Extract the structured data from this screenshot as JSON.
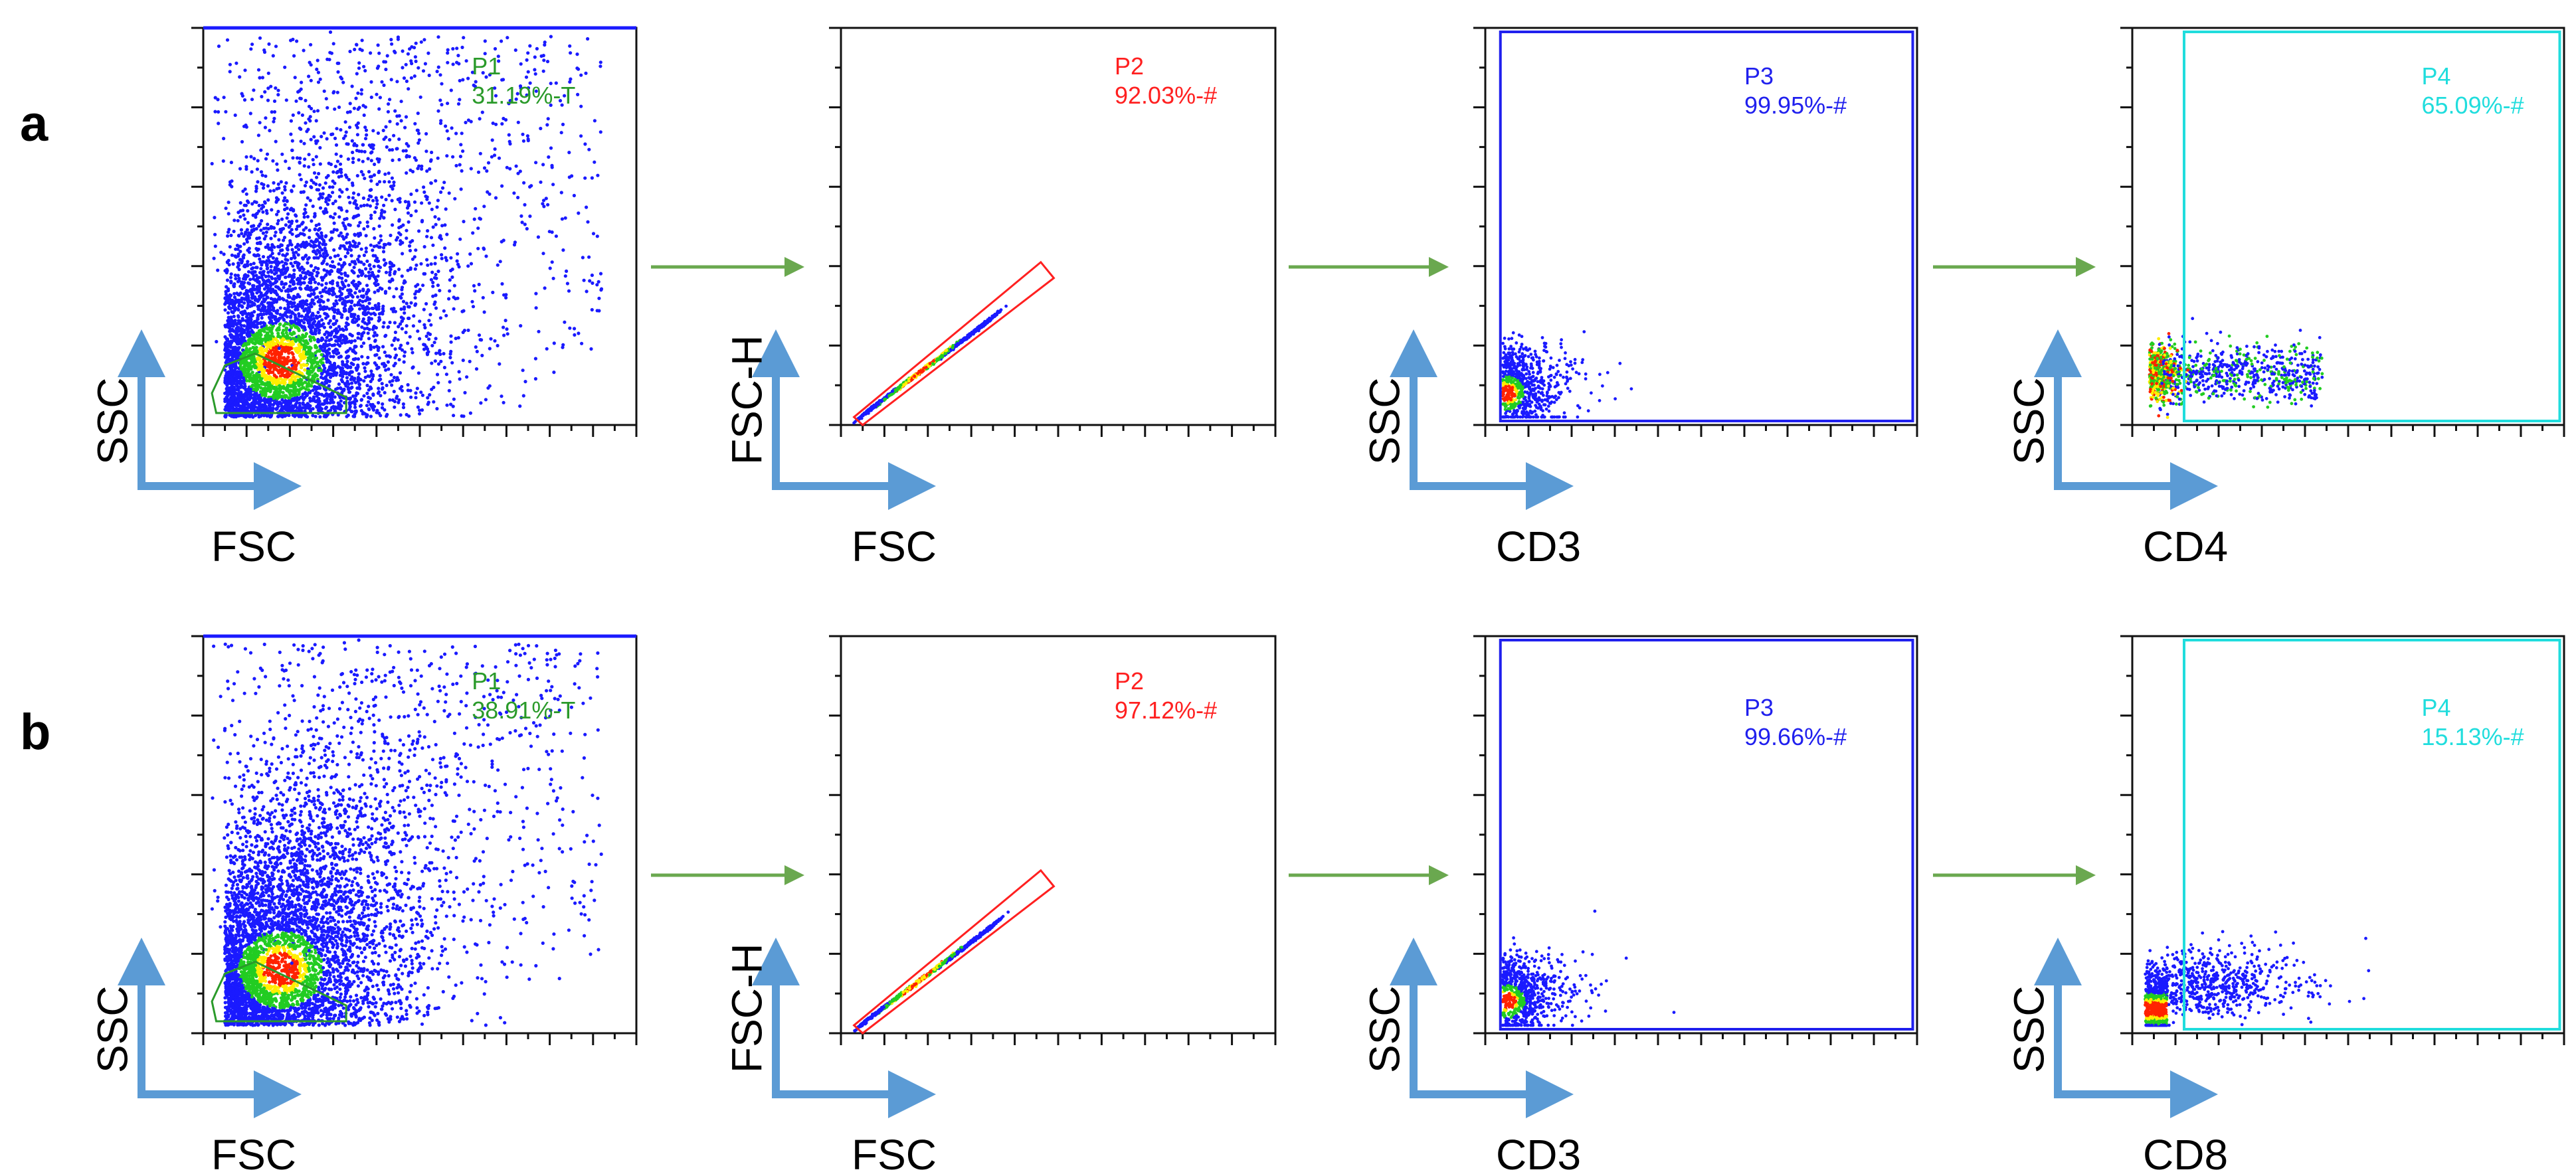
{
  "colors": {
    "event": "#1a1aff",
    "density_mid": "#22cc22",
    "density_high": "#ffee00",
    "density_peak": "#ff2200",
    "gate_p1": "#2a9a2a",
    "gate_p2": "#ff2020",
    "gate_p3": "#2020ee",
    "gate_p4": "#20dddd",
    "flow_arrow": "#6aa84f",
    "axis_arrow": "#5b9bd5"
  },
  "rows": [
    {
      "letter": "a",
      "panels": [
        {
          "xlabel": "FSC",
          "ylabel": "SSC",
          "gate": {
            "name": "P1",
            "value": "31.19%-T"
          }
        },
        {
          "xlabel": "FSC",
          "ylabel": "FSC-H",
          "gate": {
            "name": "P2",
            "value": "92.03%-#"
          }
        },
        {
          "xlabel": "CD3",
          "ylabel": "SSC",
          "gate": {
            "name": "P3",
            "value": "99.95%-#"
          }
        },
        {
          "xlabel": "CD4",
          "ylabel": "SSC",
          "gate": {
            "name": "P4",
            "value": "65.09%-#"
          }
        }
      ]
    },
    {
      "letter": "b",
      "panels": [
        {
          "xlabel": "FSC",
          "ylabel": "SSC",
          "gate": {
            "name": "P1",
            "value": "38.91%-T"
          }
        },
        {
          "xlabel": "FSC",
          "ylabel": "FSC-H",
          "gate": {
            "name": "P2",
            "value": "97.12%-#"
          }
        },
        {
          "xlabel": "CD3",
          "ylabel": "SSC",
          "gate": {
            "name": "P3",
            "value": "99.66%-#"
          }
        },
        {
          "xlabel": "CD8",
          "ylabel": "SSC",
          "gate": {
            "name": "P4",
            "value": "15.13%-#"
          }
        }
      ]
    }
  ],
  "chart_data": [
    {
      "type": "scatter",
      "row": "a",
      "xlabel": "FSC",
      "ylabel": "SSC",
      "gates": [
        {
          "name": "P1",
          "percent": 31.19
        }
      ]
    },
    {
      "type": "scatter",
      "row": "a",
      "xlabel": "FSC",
      "ylabel": "FSC-H",
      "gates": [
        {
          "name": "P2",
          "percent": 92.03
        }
      ]
    },
    {
      "type": "scatter",
      "row": "a",
      "xlabel": "CD3",
      "ylabel": "SSC",
      "gates": [
        {
          "name": "P3",
          "percent": 99.95
        }
      ]
    },
    {
      "type": "scatter",
      "row": "a",
      "xlabel": "CD4",
      "ylabel": "SSC",
      "gates": [
        {
          "name": "P4",
          "percent": 65.09
        }
      ]
    },
    {
      "type": "scatter",
      "row": "b",
      "xlabel": "FSC",
      "ylabel": "SSC",
      "gates": [
        {
          "name": "P1",
          "percent": 38.91
        }
      ]
    },
    {
      "type": "scatter",
      "row": "b",
      "xlabel": "FSC",
      "ylabel": "FSC-H",
      "gates": [
        {
          "name": "P2",
          "percent": 97.12
        }
      ]
    },
    {
      "type": "scatter",
      "row": "b",
      "xlabel": "CD3",
      "ylabel": "SSC",
      "gates": [
        {
          "name": "P3",
          "percent": 99.66
        }
      ]
    },
    {
      "type": "scatter",
      "row": "b",
      "xlabel": "CD8",
      "ylabel": "SSC",
      "gates": [
        {
          "name": "P4",
          "percent": 15.13
        }
      ]
    }
  ]
}
